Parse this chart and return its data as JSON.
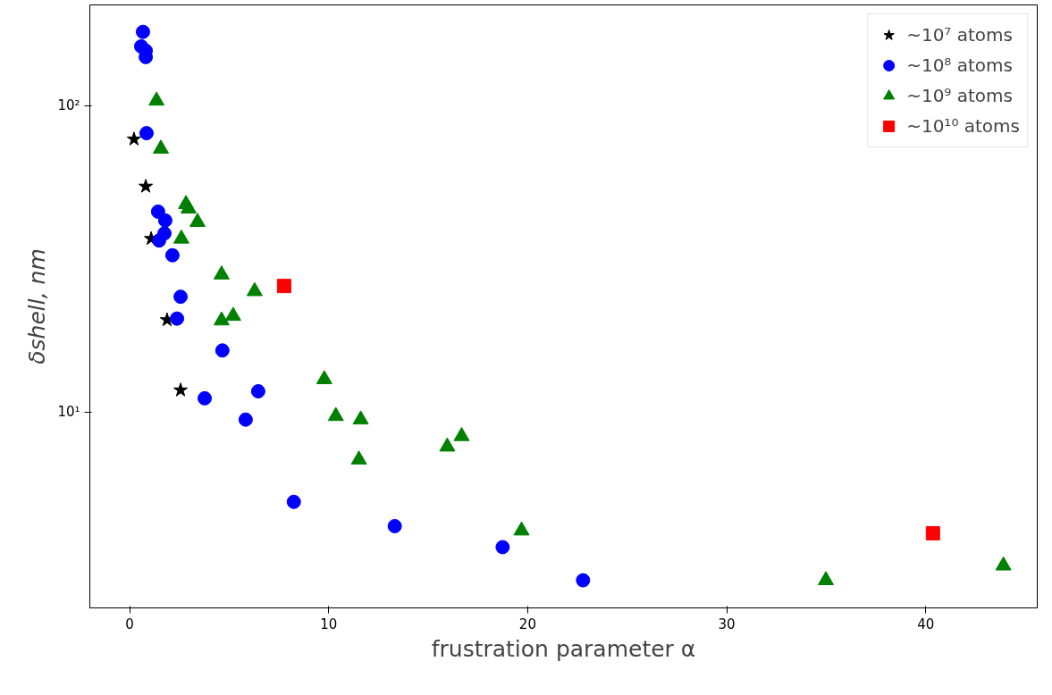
{
  "chart_data": {
    "type": "scatter",
    "xlabel": "frustration parameter α",
    "ylabel": "δshell, nm",
    "log": "y",
    "grid": false,
    "legend": "top right",
    "xlim": [
      -2,
      45.6
    ],
    "ylim": [
      2.3,
      213
    ],
    "xticks": [
      0,
      10,
      20,
      30,
      40
    ],
    "yticks": [
      {
        "value": 10,
        "label": "10¹"
      },
      {
        "value": 100,
        "label": "10²"
      }
    ],
    "series": [
      {
        "name": "~10⁷ atoms",
        "color": "#000000",
        "marker": "star",
        "x": [
          0.22,
          0.81,
          1.08,
          1.88,
          2.56
        ],
        "values": [
          77.7,
          54.5,
          36.8,
          20.0,
          11.8
        ]
      },
      {
        "name": "~10⁸ atoms",
        "color": "#0000ff",
        "marker": "circle",
        "x": [
          0.67,
          0.58,
          0.81,
          0.81,
          0.85,
          1.43,
          1.79,
          1.75,
          1.48,
          2.15,
          2.56,
          2.38,
          4.66,
          3.77,
          6.46,
          5.83,
          8.25,
          13.32,
          18.74,
          22.78
        ],
        "values": [
          174,
          156,
          151,
          144,
          81.3,
          45.1,
          42.2,
          38.3,
          36.3,
          32.5,
          23.8,
          20.2,
          15.9,
          11.1,
          11.7,
          9.46,
          5.1,
          4.25,
          3.63,
          2.83
        ]
      },
      {
        "name": "~10⁹ atoms",
        "color": "#008000",
        "marker": "triangle",
        "x": [
          1.35,
          1.57,
          2.83,
          2.96,
          3.41,
          2.6,
          4.62,
          6.28,
          4.62,
          5.2,
          9.78,
          10.36,
          11.61,
          11.52,
          15.96,
          16.68,
          19.69,
          34.98,
          43.9
        ],
        "values": [
          103.7,
          72.3,
          47.7,
          46.1,
          41.7,
          36.8,
          28.1,
          24.8,
          19.9,
          20.6,
          12.8,
          9.71,
          9.46,
          7.0,
          7.72,
          8.35,
          4.11,
          2.83,
          3.16
        ]
      },
      {
        "name": "~10¹⁰ atoms",
        "color": "#ff0000",
        "marker": "square",
        "x": [
          7.76,
          40.36
        ],
        "values": [
          25.8,
          4.03
        ]
      }
    ]
  }
}
